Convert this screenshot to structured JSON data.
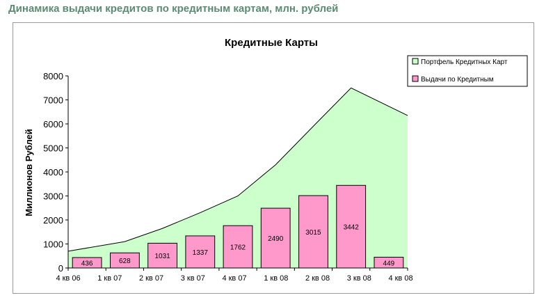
{
  "page": {
    "heading": "Динамика выдачи кредитов по кредитным картам, млн. рублей"
  },
  "chart_data": {
    "type": "bar",
    "title": "Кредитные Карты",
    "xlabel": "",
    "ylabel": "Миллионов Рублей",
    "ylim": [
      0,
      8000
    ],
    "yticks": [
      0,
      1000,
      2000,
      3000,
      4000,
      5000,
      6000,
      7000,
      8000
    ],
    "grid": false,
    "legend_position": "top-right",
    "categories": [
      "4 кв 06",
      "1 кв 07",
      "2 кв 07",
      "3 кв 07",
      "4 кв 07",
      "1 кв 08",
      "2 кв 08",
      "3 кв 08",
      "4 кв 08"
    ],
    "series": [
      {
        "name": "Портфель Кредитных Карт",
        "kind": "area",
        "color": "#ccffcc",
        "values": [
          700,
          1100,
          1650,
          2300,
          3000,
          4300,
          5900,
          7500,
          6350
        ]
      },
      {
        "name": "Выдачи по Кредитным",
        "kind": "bar",
        "color": "#ff99cc",
        "values": [
          436,
          628,
          1031,
          1337,
          1762,
          2490,
          3015,
          3442,
          449
        ],
        "labels": [
          "436",
          "628",
          "1031",
          "1337",
          "1762",
          "2490",
          "3015",
          "3442",
          "449"
        ]
      }
    ]
  }
}
